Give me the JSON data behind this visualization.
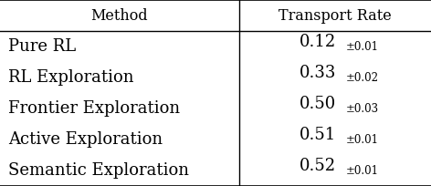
{
  "col_headers": [
    "Method",
    "Transport Rate"
  ],
  "rows": [
    {
      "method": "Pure RL",
      "value": "0.12",
      "std": "±0.01"
    },
    {
      "method": "RL Exploration",
      "value": "0.33",
      "std": "±0.02"
    },
    {
      "method": "Frontier Exploration",
      "value": "0.50",
      "std": "±0.03"
    },
    {
      "method": "Active Exploration",
      "value": "0.51",
      "std": "±0.01"
    },
    {
      "method": "Semantic Exploration",
      "value": "0.52",
      "std": "±0.01"
    }
  ],
  "col_split": 0.555,
  "bg_color": "#ffffff",
  "text_color": "#000000",
  "line_color": "#000000",
  "header_fontsize": 11.5,
  "body_fontsize": 13,
  "std_fontsize": 8.5
}
